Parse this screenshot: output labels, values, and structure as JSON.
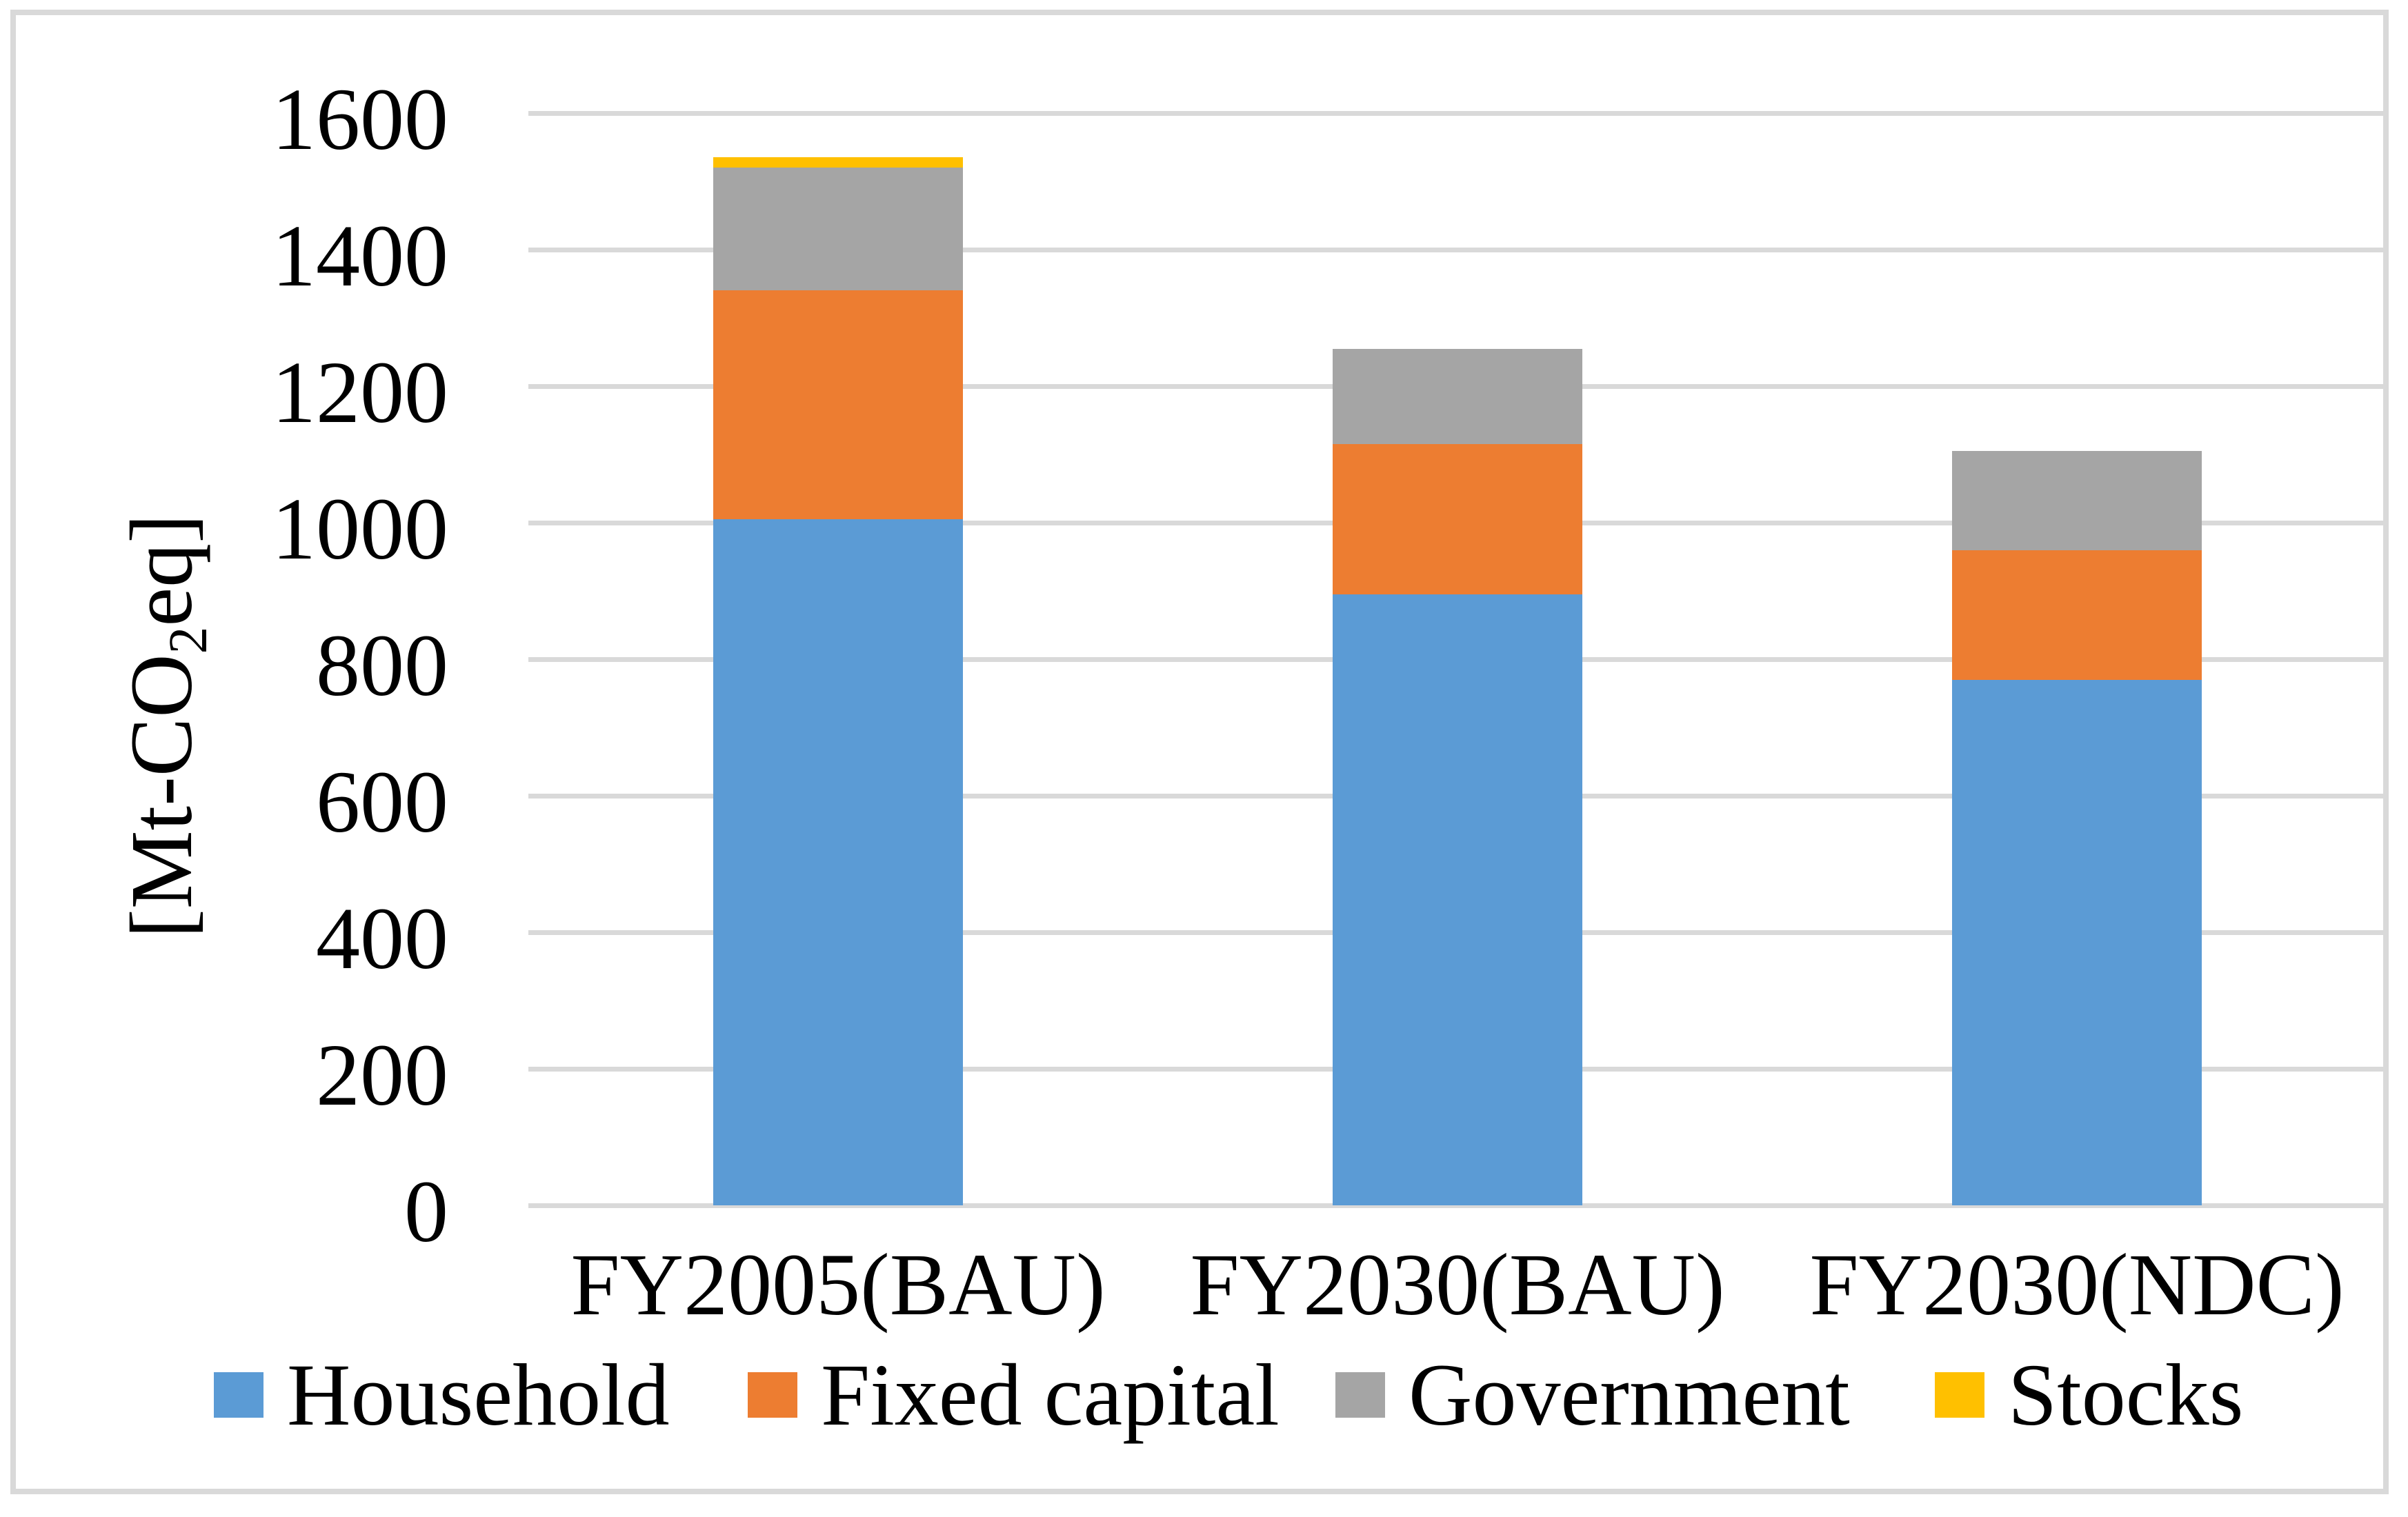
{
  "figure": {
    "background": "#FFFFFF",
    "border_color": "#D9D9D9",
    "gridline_color": "#D9D9D9",
    "text_color": "#000000"
  },
  "y_axis": {
    "title_full": "[Mt-CO₂eq]",
    "title_pre": "[Mt-CO",
    "title_sub": "2",
    "title_post": "eq]"
  },
  "chart_data": {
    "type": "bar",
    "stacked": true,
    "title": "",
    "xlabel": "",
    "ylabel": "[Mt-CO₂eq]",
    "ylim": [
      0,
      1600
    ],
    "ytick_step": 200,
    "yticks": [
      0,
      200,
      400,
      600,
      800,
      1000,
      1200,
      1400,
      1600
    ],
    "grid": true,
    "legend_position": "bottom",
    "categories": [
      "FY2005(BAU)",
      "FY2030(BAU)",
      "FY2030(NDC)"
    ],
    "series": [
      {
        "name": "Household",
        "color": "#5B9BD5",
        "values": [
          1005,
          895,
          770
        ]
      },
      {
        "name": "Fixed capital",
        "color": "#ED7D31",
        "values": [
          335,
          220,
          190
        ]
      },
      {
        "name": "Government",
        "color": "#A5A5A5",
        "values": [
          180,
          140,
          145
        ]
      },
      {
        "name": "Stocks",
        "color": "#FFC000",
        "values": [
          15,
          0,
          0
        ]
      }
    ],
    "totals": [
      1535,
      1255,
      1105
    ],
    "values_unit": "Mt-CO2eq"
  }
}
